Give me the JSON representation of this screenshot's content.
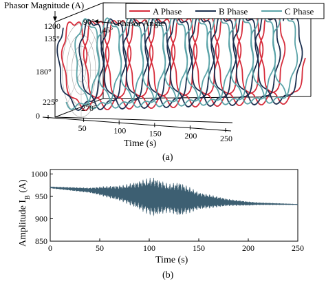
{
  "chart_data": [
    {
      "type": "line",
      "subtitle_label": "(a)",
      "zlabel": "Phasor Magnitude (A)",
      "angle_label": "Phasor Angle",
      "xlabel": "Time (s)",
      "xlim": [
        0,
        250
      ],
      "x_ticks": [
        "0",
        "50",
        "100",
        "150",
        "200",
        "250"
      ],
      "magnitude_tick": "1200",
      "angle_ticks": [
        "90°",
        "135°",
        "180°",
        "225°",
        "270°",
        "45°"
      ],
      "legend_position": "top-right",
      "series": [
        {
          "name": "A Phase",
          "color": "#d62b3a"
        },
        {
          "name": "B Phase",
          "color": "#1b2f4f"
        },
        {
          "name": "C Phase",
          "color": "#5aa3a8"
        }
      ],
      "turns_shown": 10
    },
    {
      "type": "line",
      "subtitle_label": "(b)",
      "xlabel": "Time (s)",
      "ylabel_text": "Amplitude  I",
      "ylabel_sub": "B",
      "ylabel_unit": " (A)",
      "xlim": [
        0,
        250
      ],
      "ylim": [
        850,
        1010
      ],
      "x_ticks": [
        "0",
        "50",
        "100",
        "150",
        "200",
        "250"
      ],
      "y_ticks": [
        "850",
        "900",
        "950",
        "1000"
      ],
      "series": [
        {
          "color": "#3d5f72",
          "baseline": [
            [
              0,
              970
            ],
            [
              50,
              962
            ],
            [
              100,
              950
            ],
            [
              150,
              940
            ],
            [
              200,
              934
            ],
            [
              250,
              932
            ]
          ],
          "envelope_halfwidth": [
            [
              0,
              2
            ],
            [
              40,
              6
            ],
            [
              75,
              20
            ],
            [
              95,
              38
            ],
            [
              105,
              45
            ],
            [
              120,
              32
            ],
            [
              130,
              40
            ],
            [
              150,
              20
            ],
            [
              180,
              8
            ],
            [
              210,
              3
            ],
            [
              250,
              1
            ]
          ]
        }
      ]
    }
  ]
}
